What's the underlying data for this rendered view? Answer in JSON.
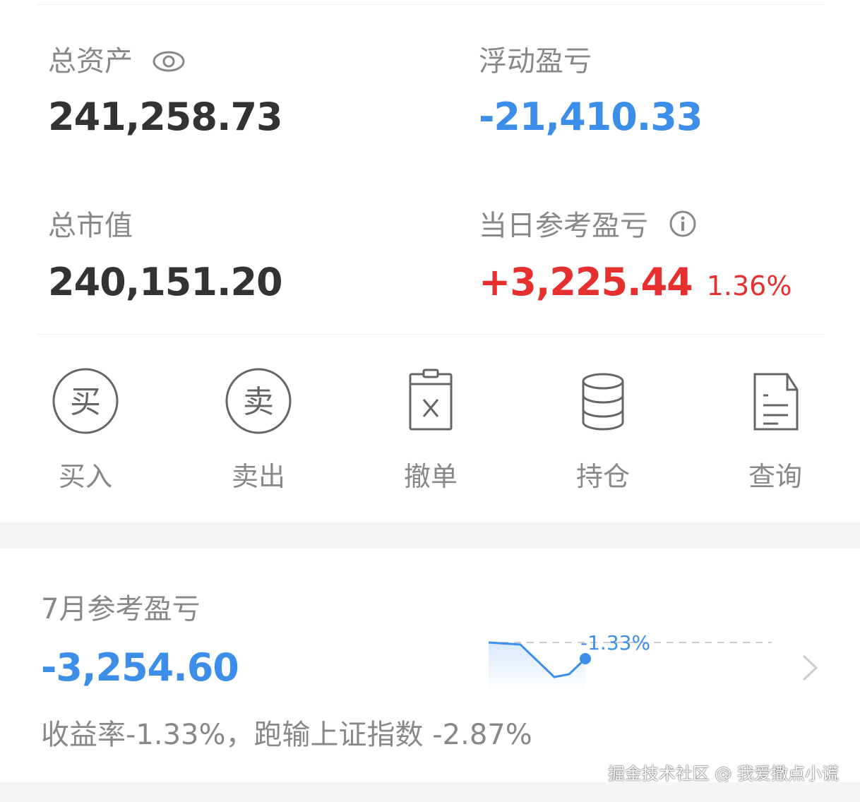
{
  "summary": {
    "total_assets": {
      "label": "总资产",
      "value": "241,258.73",
      "icon": "eye-icon"
    },
    "floating_pl": {
      "label": "浮动盈亏",
      "value": "-21,410.33",
      "color": "#3d8ee8"
    },
    "market_value": {
      "label": "总市值",
      "value": "240,151.20"
    },
    "daily_pl": {
      "label": "当日参考盈亏",
      "value": "+3,225.44",
      "percent": "1.36%",
      "color": "#e5302f",
      "icon": "info-icon"
    }
  },
  "actions": [
    {
      "label": "买入",
      "icon": "buy-icon",
      "glyph": "买"
    },
    {
      "label": "卖出",
      "icon": "sell-icon",
      "glyph": "卖"
    },
    {
      "label": "撤单",
      "icon": "cancel-order-icon"
    },
    {
      "label": "持仓",
      "icon": "holdings-icon"
    },
    {
      "label": "查询",
      "icon": "query-icon"
    }
  ],
  "monthly": {
    "title": "7月参考盈亏",
    "value": "-3,254.60",
    "summary": "收益率-1.33%，跑输上证指数 -2.87%",
    "sparkline": {
      "label": "-1.33%",
      "values": [
        0,
        -0.17,
        -2.83,
        -2.6,
        -1.33
      ],
      "color": "#3d8ee8"
    }
  },
  "watermark": "掘金技术社区 @ 我爱撒点小谎"
}
